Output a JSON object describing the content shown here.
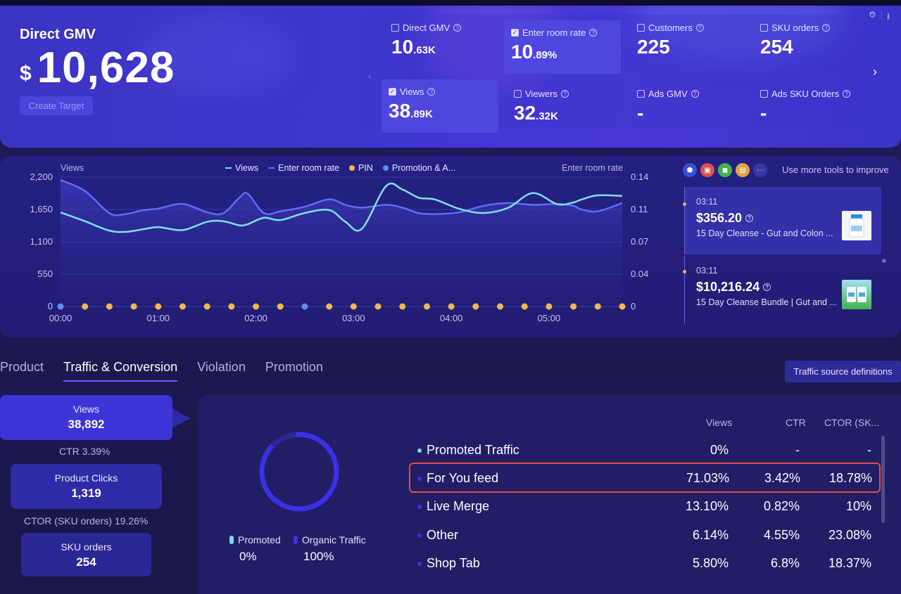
{
  "hero": {
    "title": "Direct GMV",
    "currency": "$",
    "value": "10,628",
    "create_target": "Create Target",
    "metrics": [
      {
        "label": "Direct GMV",
        "main": "10",
        "small": ".63K",
        "checked": false
      },
      {
        "label": "Enter room rate",
        "main": "10",
        "small": ".89%",
        "checked": true
      },
      {
        "label": "Customers",
        "main": "225",
        "small": "",
        "checked": false
      },
      {
        "label": "SKU orders",
        "main": "254",
        "small": "",
        "checked": false
      },
      {
        "label": "Views",
        "main": "38",
        "small": ".89K",
        "checked": true
      },
      {
        "label": "Viewers",
        "main": "32",
        "small": ".32K",
        "checked": false
      },
      {
        "label": "Ads GMV",
        "main": "-",
        "small": "",
        "checked": false
      },
      {
        "label": "Ads SKU Orders",
        "main": "-",
        "small": "",
        "checked": false
      }
    ]
  },
  "chart": {
    "left_axis_label": "Views",
    "right_axis_label": "Enter room rate",
    "legend": [
      "Views",
      "Enter room rate",
      "PIN",
      "Promotion & A..."
    ],
    "colors": {
      "views": "#7de3e6",
      "rate": "#5f6cf5",
      "pin": "#f5b74a",
      "promo": "#5b8ef0"
    }
  },
  "chart_data": {
    "type": "line",
    "x_ticks": [
      "00:00",
      "01:00",
      "02:00",
      "03:00",
      "04:00",
      "05:00"
    ],
    "y_left_ticks": [
      "2,200",
      "1,650",
      "1,100",
      "550",
      "0"
    ],
    "y_right_ticks": [
      "0.14",
      "0.11",
      "0.07",
      "0.04",
      "0"
    ],
    "ylim_left": [
      0,
      2200
    ],
    "ylim_right": [
      0,
      0.14
    ],
    "xlim": [
      0,
      345
    ],
    "series": [
      {
        "name": "Views",
        "axis": "left",
        "x": [
          0,
          15,
          30,
          40,
          50,
          60,
          75,
          90,
          100,
          110,
          115,
          125,
          135,
          150,
          165,
          175,
          185,
          200,
          210,
          220,
          230,
          245,
          260,
          275,
          290,
          305,
          315,
          320,
          330,
          345
        ],
        "values": [
          1600,
          1450,
          1290,
          1270,
          1310,
          1350,
          1300,
          1440,
          1450,
          1380,
          1400,
          1510,
          1470,
          1590,
          1640,
          1440,
          1320,
          2050,
          1990,
          1850,
          1820,
          1660,
          1590,
          1680,
          1930,
          1740,
          1770,
          1820,
          1890,
          1880
        ]
      },
      {
        "name": "Enter room rate",
        "axis": "right",
        "x": [
          0,
          15,
          30,
          40,
          50,
          60,
          75,
          90,
          100,
          110,
          115,
          125,
          135,
          150,
          165,
          175,
          185,
          200,
          210,
          220,
          230,
          245,
          260,
          275,
          290,
          305,
          315,
          320,
          330,
          345
        ],
        "values": [
          0.137,
          0.125,
          0.101,
          0.1,
          0.104,
          0.106,
          0.111,
          0.102,
          0.101,
          0.118,
          0.122,
          0.101,
          0.103,
          0.108,
          0.116,
          0.11,
          0.107,
          0.11,
          0.107,
          0.101,
          0.1,
          0.102,
          0.109,
          0.112,
          0.11,
          0.111,
          0.109,
          0.105,
          0.103,
          0.112
        ]
      }
    ],
    "markers": {
      "x": [
        0,
        15,
        30,
        45,
        60,
        75,
        90,
        105,
        120,
        135,
        150,
        165,
        180,
        195,
        210,
        225,
        240,
        255,
        270,
        285,
        300,
        315,
        330,
        345
      ],
      "types": [
        "promo",
        "pin",
        "pin",
        "pin",
        "pin",
        "pin",
        "pin",
        "pin",
        "pin",
        "pin",
        "promo",
        "pin",
        "pin",
        "pin",
        "pin",
        "pin",
        "pin",
        "pin",
        "pin",
        "pin",
        "pin",
        "pin",
        "pin",
        "pin"
      ]
    }
  },
  "tools": {
    "text": "Use more tools to improve",
    "icons": [
      "shield-icon",
      "bag-icon",
      "cart-icon",
      "coupon-icon",
      "more-icon"
    ]
  },
  "feed": [
    {
      "time": "03:11",
      "price": "$356.20",
      "name": "15 Day Cleanse - Gut and Colon ..."
    },
    {
      "time": "03:11",
      "price": "$10,216.24",
      "name": "15 Day Cleanse Bundle | Gut and ..."
    }
  ],
  "tabs": [
    "Product",
    "Traffic & Conversion",
    "Violation",
    "Promotion"
  ],
  "active_tab": 1,
  "traffic_btn": "Traffic source definitions",
  "funnel": {
    "views_label": "Views",
    "views": "38,892",
    "ctr": "CTR  3.39%",
    "clicks_label": "Product Clicks",
    "clicks": "1,319",
    "ctor": "CTOR (SKU orders)  19.26%",
    "orders_label": "SKU orders",
    "orders": "254"
  },
  "donut": {
    "promoted_label": "Promoted",
    "promoted_value": "0%",
    "organic_label": "Organic Traffic",
    "organic_value": "100%",
    "promoted_share": 0,
    "organic_share": 100,
    "colors": {
      "promoted": "#6fe0e3",
      "organic": "#3b30e6"
    }
  },
  "table": {
    "headers": [
      "Views",
      "CTR",
      "CTOR (SK..."
    ],
    "rows": [
      {
        "name": "Promoted Traffic",
        "views": "0%",
        "ctr": "-",
        "ctor": "-",
        "dot": "#6fe0e3"
      },
      {
        "name": "For You feed",
        "views": "71.03%",
        "ctr": "3.42%",
        "ctor": "18.78%",
        "dot": "#3b30e6",
        "highlight": true
      },
      {
        "name": "Live Merge",
        "views": "13.10%",
        "ctr": "0.82%",
        "ctor": "10%",
        "dot": "#3b30e6"
      },
      {
        "name": "Other",
        "views": "6.14%",
        "ctr": "4.55%",
        "ctor": "23.08%",
        "dot": "#3b30e6"
      },
      {
        "name": "Shop Tab",
        "views": "5.80%",
        "ctr": "6.8%",
        "ctor": "18.37%",
        "dot": "#3b30e6"
      }
    ]
  }
}
